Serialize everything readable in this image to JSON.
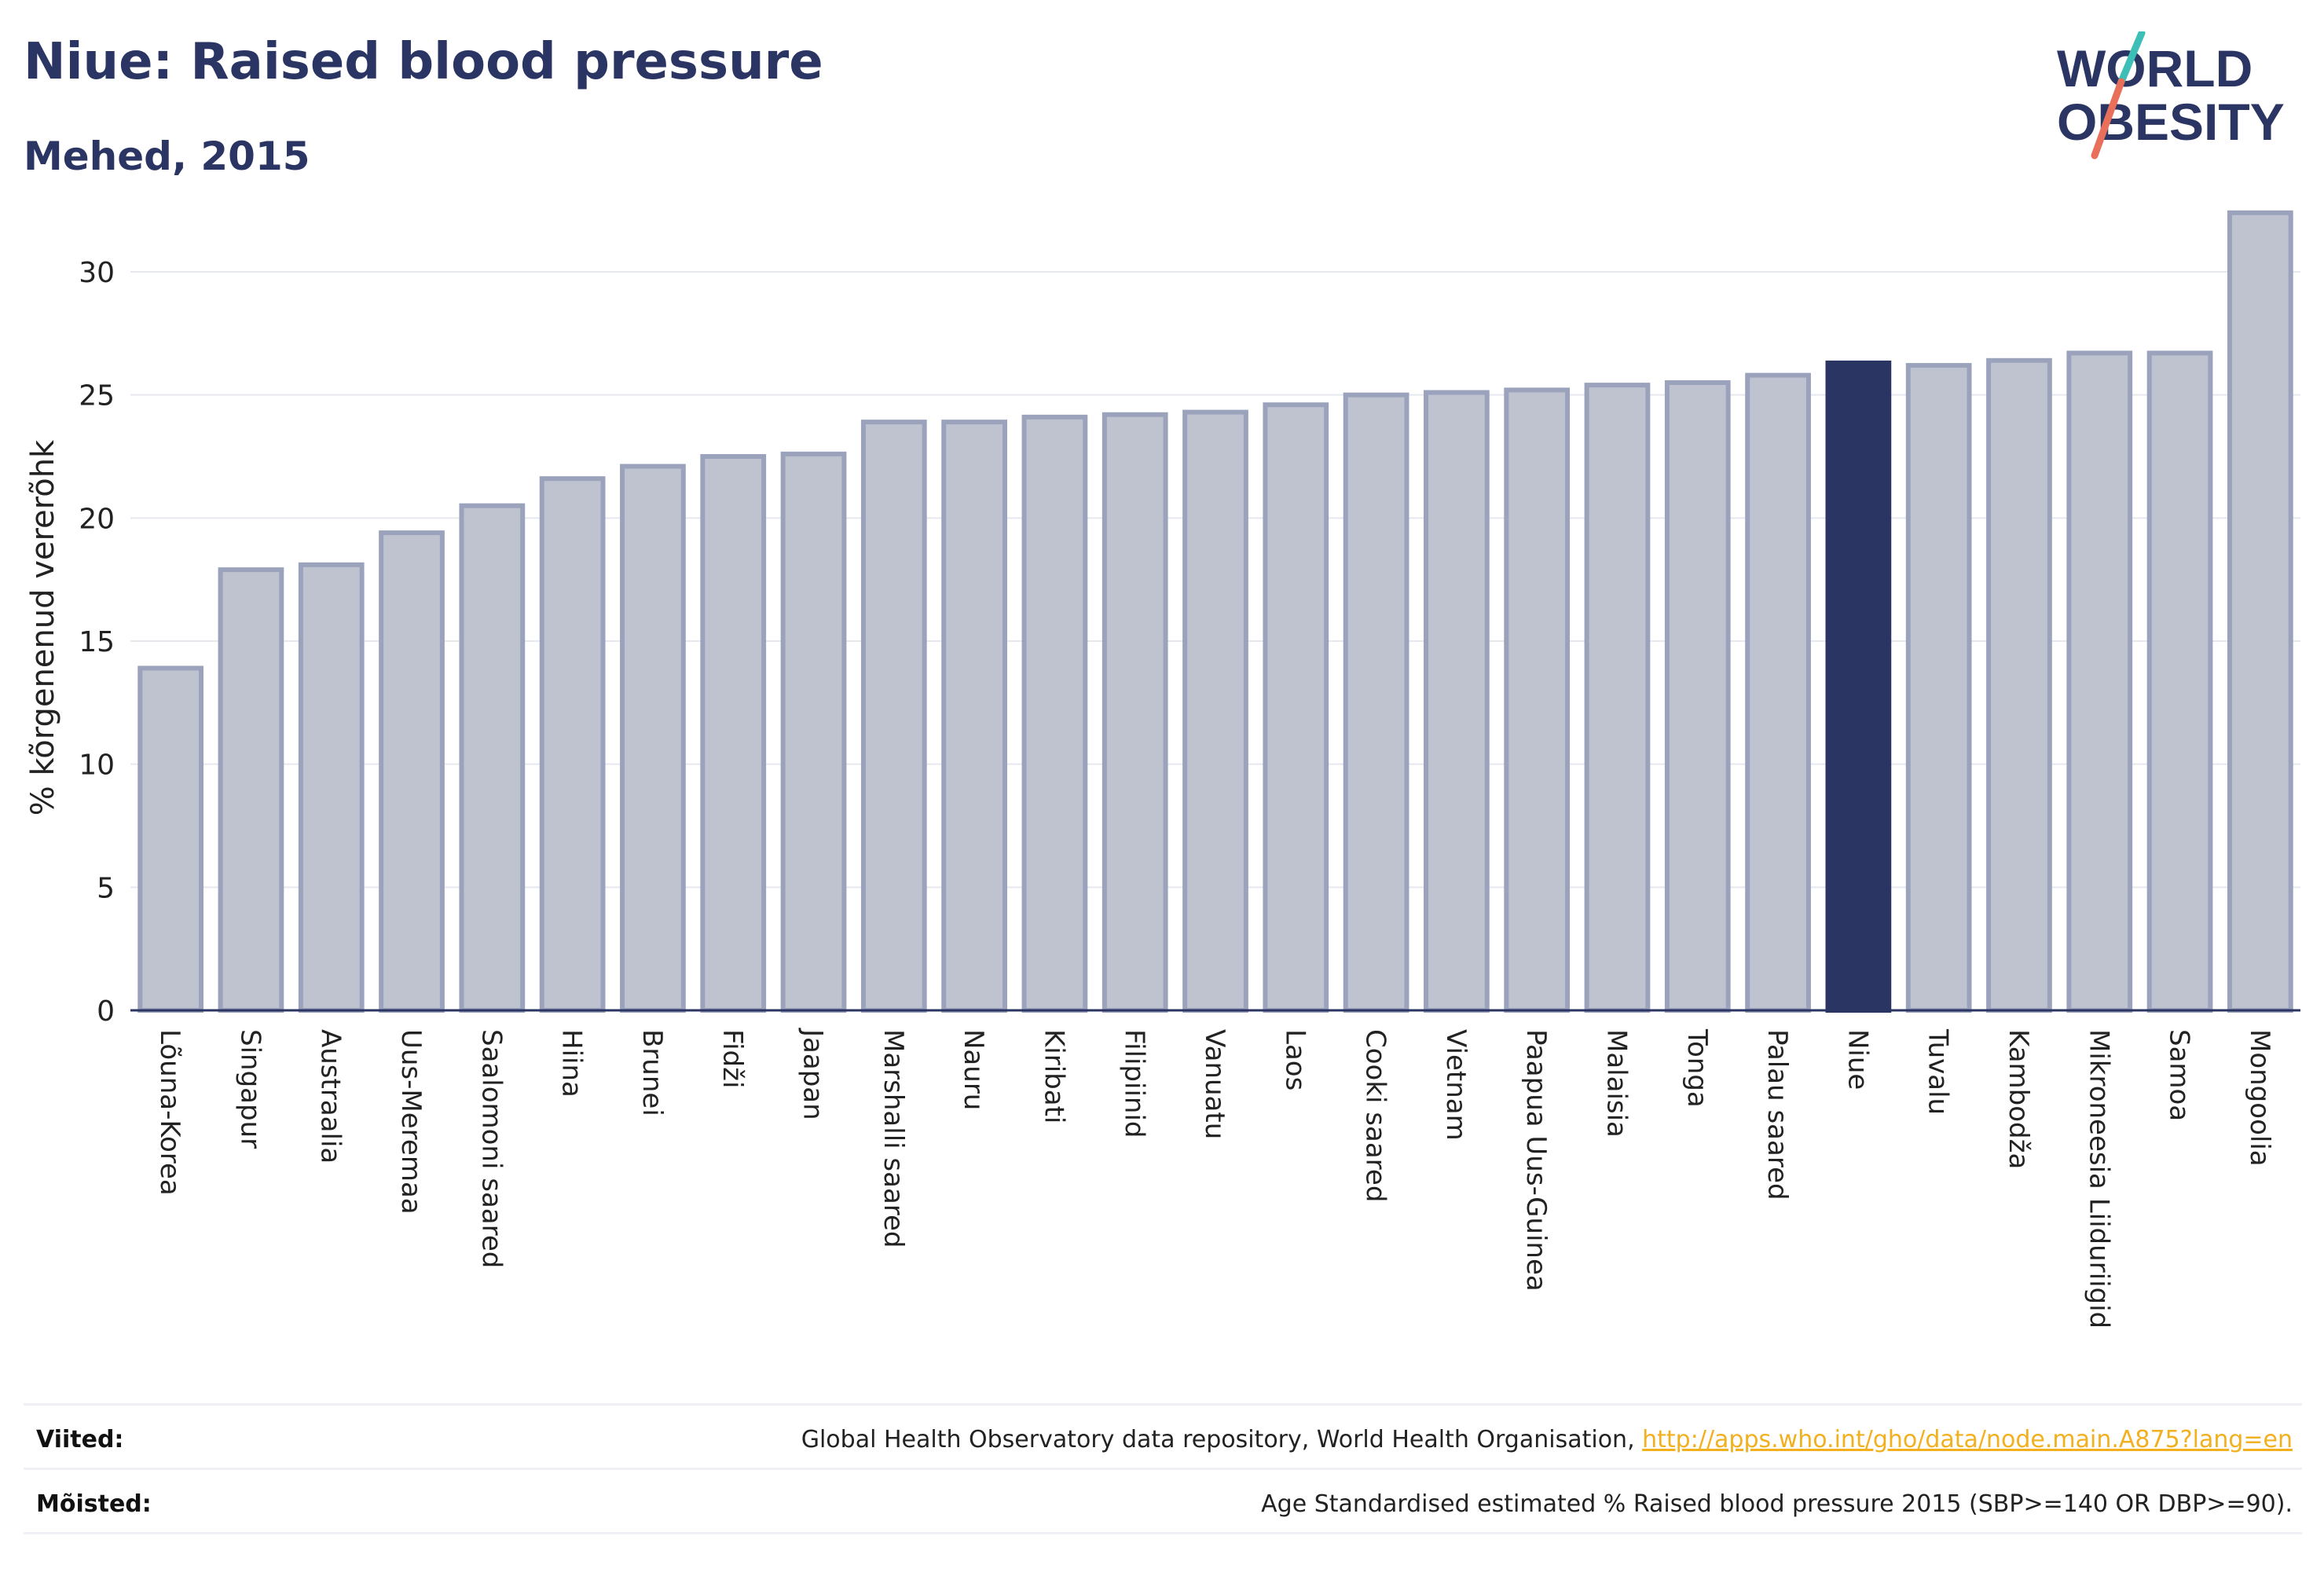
{
  "header": {
    "title": "Niue: Raised blood pressure",
    "subtitle": "Mehed, 2015"
  },
  "logo": {
    "line1": "WORLD",
    "line2": "OBESITY"
  },
  "footer": {
    "sources_label": "Viited:",
    "sources_text": "Global Health Observatory data repository, World Health Organisation, ",
    "sources_link": "http://apps.who.int/gho/data/node.main.A875?lang=en",
    "definition_label": "Mõisted:",
    "definition_text": "Age Standardised estimated % Raised blood pressure 2015 (SBP>=140 OR DBP>=90)."
  },
  "colors": {
    "title": "#2b3563",
    "bar": "#bfc3d0",
    "bar_border": "#9ba3bc",
    "highlight": "#2b3563",
    "grid": "#e6e8ef",
    "axis": "#2b3563",
    "link": "#f2b01e",
    "logo_slash_top": "#3dbfb8",
    "logo_slash_bottom": "#e8705a"
  },
  "chart_data": {
    "type": "bar",
    "ylabel": "% kõrgenenud vererõhk",
    "xlabel": "",
    "ylim": [
      0,
      33
    ],
    "yticks": [
      0,
      5,
      10,
      15,
      20,
      25,
      30
    ],
    "grid": true,
    "highlight": "Niue",
    "categories": [
      "Lõuna-Korea",
      "Singapur",
      "Austraalia",
      "Uus-Meremaa",
      "Saalomoni saared",
      "Hiina",
      "Brunei",
      "Fidži",
      "Jaapan",
      "Marshalli saared",
      "Nauru",
      "Kiribati",
      "Filipiinid",
      "Vanuatu",
      "Laos",
      "Cooki saared",
      "Vietnam",
      "Paapua Uus-Guinea",
      "Malaisia",
      "Tonga",
      "Palau saared",
      "Niue",
      "Tuvalu",
      "Kambodža",
      "Mikroneesia Liiduriigid",
      "Samoa",
      "Mongoolia"
    ],
    "values": [
      13.9,
      17.9,
      18.1,
      19.4,
      20.5,
      21.6,
      22.1,
      22.5,
      22.6,
      23.9,
      23.9,
      24.1,
      24.2,
      24.3,
      24.6,
      25.0,
      25.1,
      25.2,
      25.4,
      25.5,
      25.8,
      26.3,
      26.2,
      26.4,
      26.7,
      26.7,
      32.4
    ]
  }
}
